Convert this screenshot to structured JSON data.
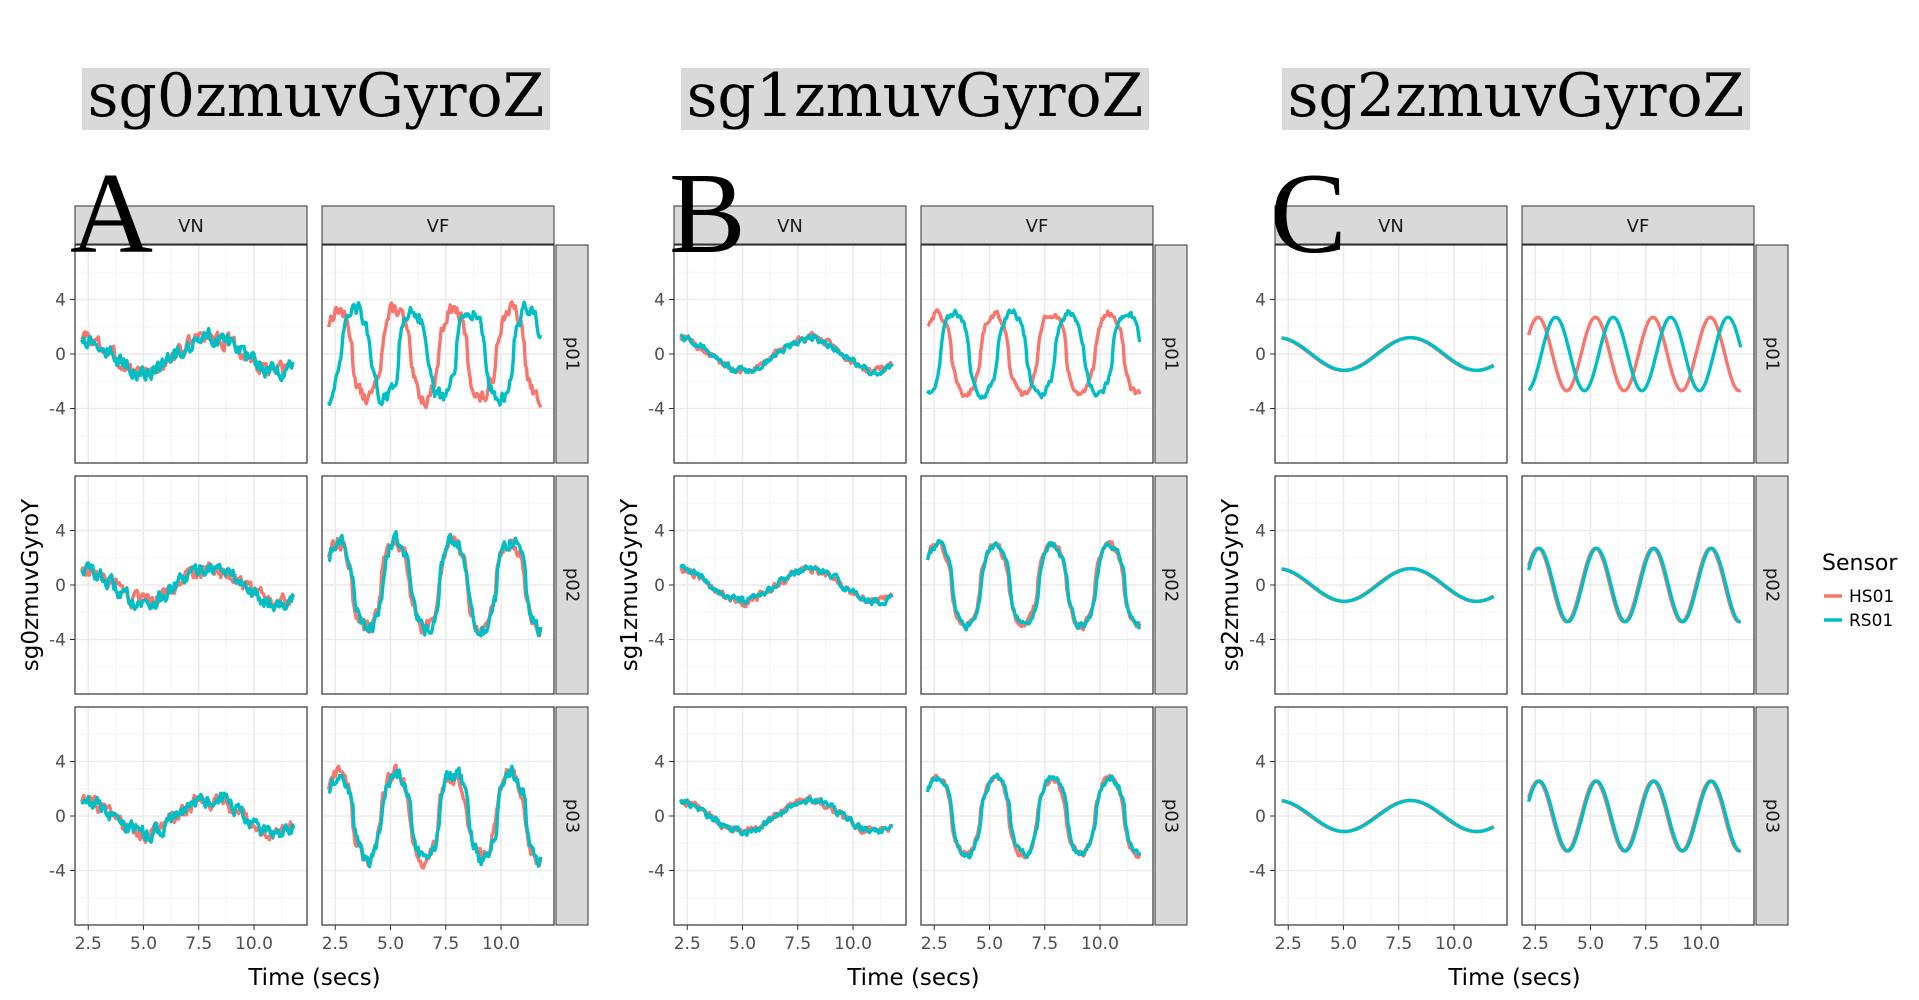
{
  "chart_data": [
    {
      "type": "line",
      "panel_letter": "A",
      "title": "sg0zmuvGyroZ",
      "xlabel": "Time (secs)",
      "ylabel": "sg0zmuvGyroY",
      "smoothing": "raw",
      "col_facets": [
        "VN",
        "VF"
      ],
      "row_facets": [
        "p01",
        "p02",
        "p03"
      ],
      "xlim": [
        1.9,
        12.4
      ],
      "ylim": [
        -8,
        8
      ],
      "x_ticks": [
        "2.5",
        "5.0",
        "7.5",
        "10.0"
      ],
      "y_ticks": [
        "4",
        "0",
        "-4"
      ],
      "VN": {
        "amplitude": 1.3,
        "period_secs": 6.0,
        "phase_shift_RS01": 0.05
      },
      "VF": {
        "amplitude": 3.3,
        "period_secs": 2.6,
        "p01_phase_shift_RS01": 0.8,
        "p02_phase_shift_RS01": 0.05,
        "p03_phase_shift_RS01": 0.05
      }
    },
    {
      "type": "line",
      "panel_letter": "B",
      "title": "sg1zmuvGyroZ",
      "xlabel": "Time (secs)",
      "ylabel": "sg1zmuvGyroY",
      "smoothing": "light",
      "col_facets": [
        "VN",
        "VF"
      ],
      "row_facets": [
        "p01",
        "p02",
        "p03"
      ],
      "xlim": [
        1.9,
        12.4
      ],
      "ylim": [
        -8,
        8
      ],
      "x_ticks": [
        "2.5",
        "5.0",
        "7.5",
        "10.0"
      ],
      "y_ticks": [
        "4",
        "0",
        "-4"
      ],
      "VN": {
        "amplitude": 1.2,
        "period_secs": 6.0,
        "phase_shift_RS01": 0.05
      },
      "VF": {
        "amplitude": 3.0,
        "period_secs": 2.6,
        "p01_phase_shift_RS01": 0.8,
        "p02_phase_shift_RS01": 0.05,
        "p03_phase_shift_RS01": 0.05
      }
    },
    {
      "type": "line",
      "panel_letter": "C",
      "title": "sg2zmuvGyroZ",
      "xlabel": "Time (secs)",
      "ylabel": "sg2zmuvGyroY",
      "smoothing": "smooth",
      "col_facets": [
        "VN",
        "VF"
      ],
      "row_facets": [
        "p01",
        "p02",
        "p03"
      ],
      "xlim": [
        1.9,
        12.4
      ],
      "ylim": [
        -8,
        8
      ],
      "x_ticks": [
        "2.5",
        "5.0",
        "7.5",
        "10.0"
      ],
      "y_ticks": [
        "4",
        "0",
        "-4"
      ],
      "VN": {
        "amplitude": 1.2,
        "period_secs": 6.0,
        "phase_shift_RS01": 0.05
      },
      "VF": {
        "amplitude": 2.7,
        "period_secs": 2.6,
        "p01_phase_shift_RS01": 0.8,
        "p02_phase_shift_RS01": 0.05,
        "p03_phase_shift_RS01": 0.05
      }
    }
  ],
  "legend": {
    "title": "Sensor",
    "items": [
      {
        "label": "HS01",
        "color": "#F8766D"
      },
      {
        "label": "RS01",
        "color": "#00BFC4"
      }
    ]
  },
  "colors": {
    "strip_background": "#D9D9D9",
    "grid_major": "#EBEBEB",
    "grid_minor": "#F5F5F5",
    "panel_border": "#333333"
  }
}
